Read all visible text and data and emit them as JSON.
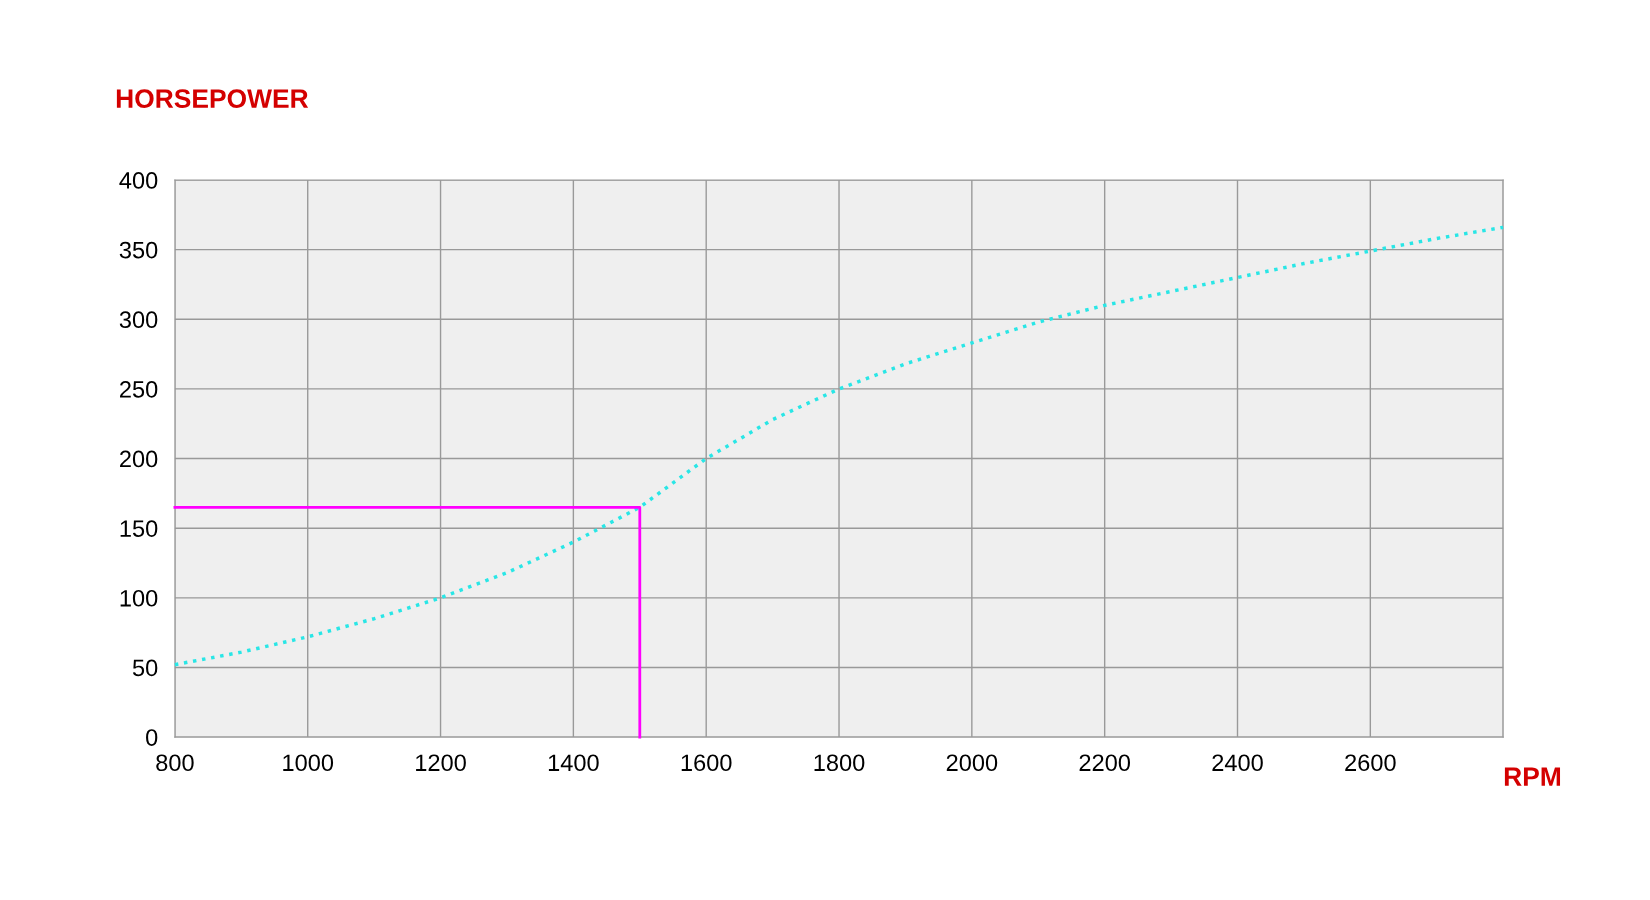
{
  "chart_data": {
    "type": "line",
    "xlabel": "RPM",
    "ylabel": "HORSEPOWER",
    "xlim": [
      800,
      2800
    ],
    "xticks": [
      800,
      1000,
      1200,
      1400,
      1600,
      1800,
      2000,
      2200,
      2400,
      2600,
      {
        "value": 2800,
        "label": null
      }
    ],
    "ylim": [
      0,
      400
    ],
    "yticks": [
      0,
      50,
      100,
      150,
      200,
      250,
      300,
      350,
      400
    ],
    "grid": true,
    "series": [
      {
        "color": "#29e6e6",
        "line_style": "dotted",
        "x": [
          800,
          900,
          1000,
          1100,
          1200,
          1300,
          1400,
          1500,
          1600,
          1700,
          1800,
          1900,
          2000,
          2100,
          2200,
          2300,
          2400,
          2500,
          2600,
          2700,
          2800
        ],
        "values": [
          52,
          61,
          72,
          85,
          100,
          118,
          140,
          165,
          200,
          228,
          250,
          268,
          283,
          298,
          310,
          320,
          330,
          340,
          349,
          358,
          366
        ]
      },
      {
        "color": "#ff00ff",
        "line_style": "solid",
        "x": [
          800,
          1500,
          1500
        ],
        "values": [
          165,
          165,
          0
        ]
      }
    ]
  }
}
